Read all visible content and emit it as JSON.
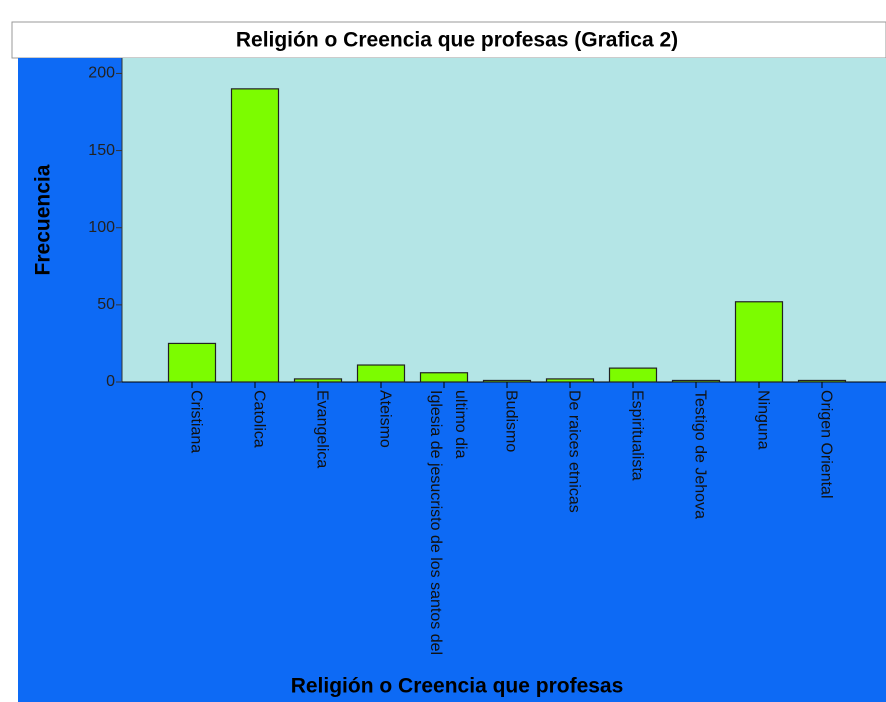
{
  "chart_data": {
    "type": "bar",
    "title": "Religión o Creencia que profesas (Grafica 2)",
    "x_label": "Religión o Creencia que profesas",
    "y_label": "Frecuencia",
    "categories": [
      "Cristiana",
      "Catolica",
      "Evangelica",
      "Ateismo",
      "Iglesia de jesucristo de los santos del ultimo dia",
      "Budismo",
      "De raices etnicas",
      "Espiritualista",
      "Testigo de Jehova",
      "Ninguna",
      "Origen Oriental"
    ],
    "values": [
      25,
      190,
      2,
      11,
      6,
      1,
      2,
      9,
      1,
      52,
      1
    ],
    "color": "#7cfc00",
    "ylim": [
      0,
      210
    ],
    "yticks": [
      0,
      50,
      100,
      150,
      200
    ],
    "grid": false
  }
}
